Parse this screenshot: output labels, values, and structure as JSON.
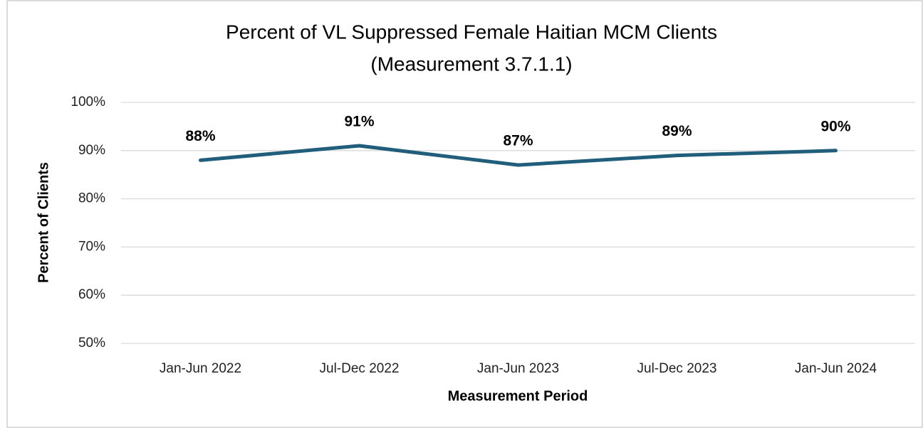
{
  "chart_data": {
    "type": "line",
    "title": "Percent of VL Suppressed Female Haitian MCM Clients",
    "subtitle": "(Measurement 3.7.1.1)",
    "xlabel": "Measurement Period",
    "ylabel": "Percent of Clients",
    "categories": [
      "Jan-Jun 2022",
      "Jul-Dec 2022",
      "Jan-Jun 2023",
      "Jul-Dec 2023",
      "Jan-Jun 2024"
    ],
    "series": [
      {
        "name": "Percent of Clients",
        "color": "#215e7c",
        "values": [
          88,
          91,
          87,
          89,
          90
        ],
        "value_labels": [
          "88%",
          "91%",
          "87%",
          "89%",
          "90%"
        ]
      }
    ],
    "ylim": [
      50,
      100
    ],
    "yticks": [
      {
        "value": 50,
        "label": "50%"
      },
      {
        "value": 60,
        "label": "60%"
      },
      {
        "value": 70,
        "label": "70%"
      },
      {
        "value": 80,
        "label": "80%"
      },
      {
        "value": 90,
        "label": "90%"
      },
      {
        "value": 100,
        "label": "100%"
      }
    ],
    "grid": true
  }
}
